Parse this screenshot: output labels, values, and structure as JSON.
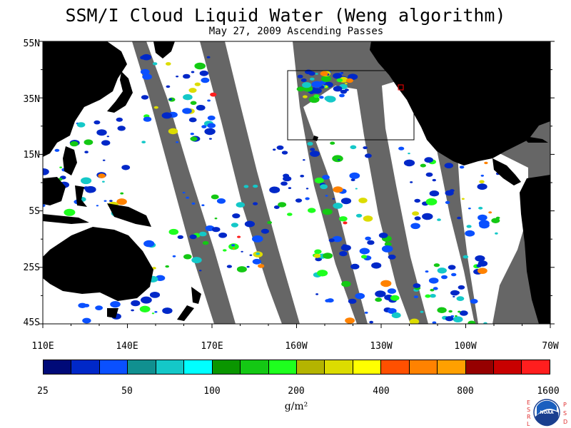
{
  "header": {
    "title": "SSM/I Cloud Liquid Water (Weng algorithm)",
    "subtitle": "May 27, 2009  Ascending Passes"
  },
  "map": {
    "lat_labels": [
      "55N",
      "35N",
      "15N",
      "5S",
      "25S",
      "45S"
    ],
    "lon_labels": [
      "110E",
      "140E",
      "170E",
      "160W",
      "130W",
      "100W",
      "70W"
    ],
    "colors": {
      "land": "#000000",
      "no_data": "#666666",
      "clear": "#ffffff",
      "box_outline": "#000000",
      "marker": "#ff0000"
    }
  },
  "colorbar": {
    "tick_labels": [
      "25",
      "50",
      "100",
      "200",
      "400",
      "800",
      "1600"
    ],
    "units": "g/m²",
    "colors": [
      "#000a78",
      "#0028c8",
      "#0a50ff",
      "#109090",
      "#14c8c8",
      "#00ffff",
      "#0a9600",
      "#14c814",
      "#1eff1e",
      "#b4b400",
      "#dcdc00",
      "#ffff00",
      "#ff5000",
      "#ff8200",
      "#ffa000",
      "#960000",
      "#c80000",
      "#ff1e1e"
    ]
  },
  "logo": {
    "left_text": "ESRL",
    "right_text": "PSD",
    "center_text": "NOAA"
  }
}
